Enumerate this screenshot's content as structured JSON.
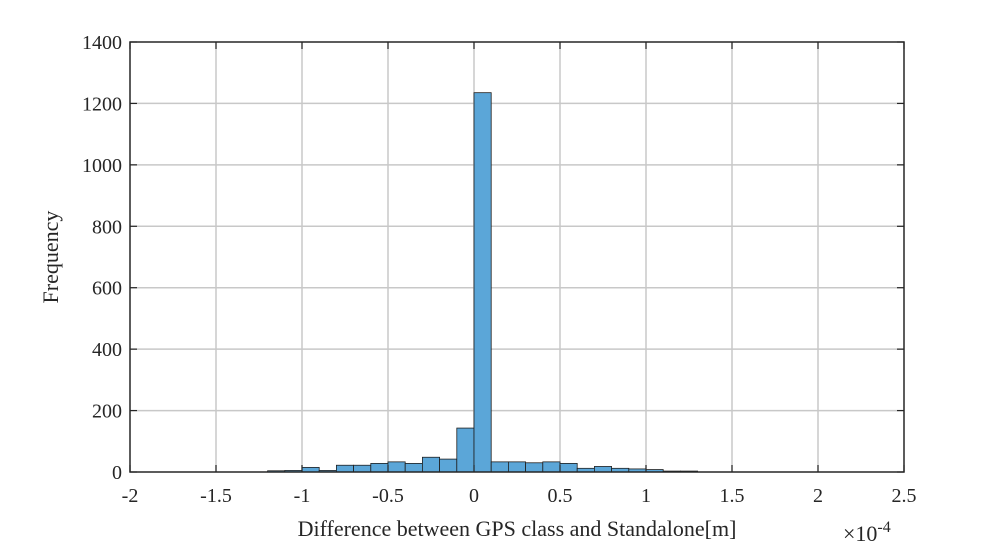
{
  "chart_data": {
    "type": "bar",
    "title": "",
    "xlabel": "Difference between GPS class and Standalone[m]",
    "ylabel": "Frequency",
    "x_scale_label": "×10",
    "x_scale_exponent": "-4",
    "xlim": [
      -2,
      2.5
    ],
    "ylim": [
      0,
      1400
    ],
    "xticks": [
      -2,
      -1.5,
      -1,
      -0.5,
      0,
      0.5,
      1,
      1.5,
      2,
      2.5
    ],
    "xtick_labels": [
      "-2",
      "-1.5",
      "-1",
      "-0.5",
      "0",
      "0.5",
      "1",
      "1.5",
      "2",
      "2.5"
    ],
    "yticks": [
      0,
      200,
      400,
      600,
      800,
      1000,
      1200,
      1400
    ],
    "ytick_labels": [
      "0",
      "200",
      "400",
      "600",
      "800",
      "1000",
      "1200",
      "1400"
    ],
    "grid": true,
    "bin_width": 0.1,
    "bin_edges_start": [
      -1.2,
      -1.1,
      -1.0,
      -0.9,
      -0.8,
      -0.7,
      -0.6,
      -0.5,
      -0.4,
      -0.3,
      -0.2,
      -0.1,
      0.0,
      0.1,
      0.2,
      0.3,
      0.4,
      0.5,
      0.6,
      0.7,
      0.8,
      0.9,
      1.0,
      1.1,
      1.2
    ],
    "values": [
      4,
      5,
      15,
      5,
      22,
      22,
      28,
      33,
      28,
      48,
      42,
      143,
      1235,
      33,
      33,
      30,
      33,
      28,
      12,
      18,
      12,
      10,
      8,
      3,
      3
    ],
    "colors": {
      "bar": "#5ba6d8",
      "edge": "#1f1f1f",
      "grid": "#c8c8c8"
    }
  }
}
